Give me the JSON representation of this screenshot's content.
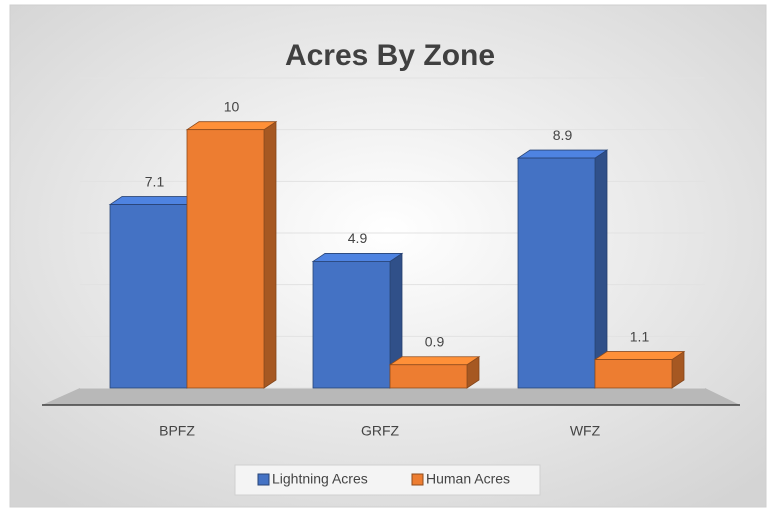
{
  "chart_data": {
    "type": "bar3d",
    "title": "Acres By Zone",
    "categories": [
      "BPFZ",
      "GRFZ",
      "WFZ"
    ],
    "series": [
      {
        "name": "Lightning Acres",
        "color": "#4472c4",
        "values": [
          7.1,
          4.9,
          8.9
        ]
      },
      {
        "name": "Human Acres",
        "color": "#ed7d31",
        "values": [
          10,
          0.9,
          1.1
        ]
      }
    ],
    "ylim": [
      0,
      12
    ],
    "yticks": [
      0,
      2,
      4,
      6,
      8,
      10,
      12
    ],
    "grid": true,
    "legend": "bottom"
  }
}
